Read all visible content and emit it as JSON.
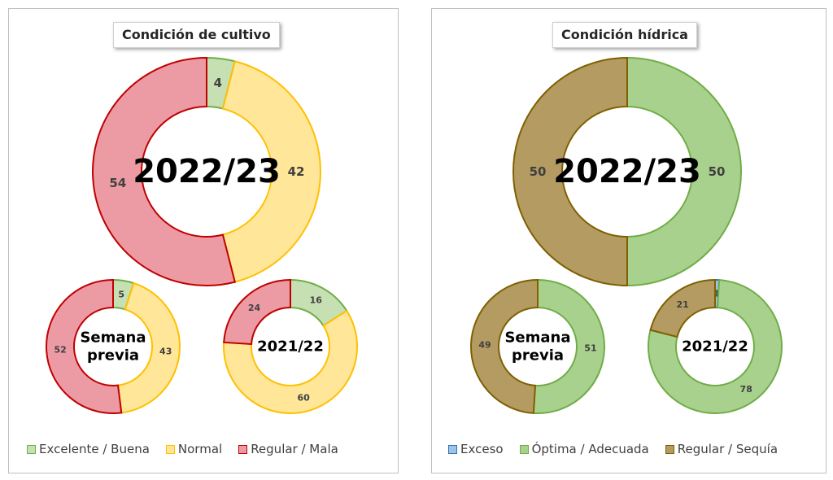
{
  "chart_data": [
    {
      "type": "pie",
      "title": "Condición de cultivo",
      "categories": [
        "Excelente / Buena",
        "Normal",
        "Regular / Mala"
      ],
      "colors": {
        "fill": [
          "#c6e0b4",
          "#ffe699",
          "#ec9ba4"
        ],
        "stroke": [
          "#70ad47",
          "#ffc000",
          "#c00000"
        ]
      },
      "legend": "bottom",
      "donuts": [
        {
          "label": "2022/23",
          "values": [
            4,
            42,
            54
          ],
          "value_labels": [
            "4",
            "42",
            "54"
          ]
        },
        {
          "label": "Semana previa",
          "values": [
            5,
            43,
            52
          ],
          "value_labels": [
            "5",
            "43",
            "52"
          ]
        },
        {
          "label": "2021/22",
          "values": [
            16,
            60,
            24
          ],
          "value_labels": [
            "16",
            "60",
            "24"
          ]
        }
      ]
    },
    {
      "type": "pie",
      "title": "Condición hídrica",
      "categories": [
        "Exceso",
        "Óptima / Adecuada",
        "Regular / Sequía"
      ],
      "colors": {
        "fill": [
          "#9dc3e6",
          "#a9d18e",
          "#b49b62"
        ],
        "stroke": [
          "#2e75b6",
          "#70ad47",
          "#7f6000"
        ]
      },
      "legend": "bottom",
      "donuts": [
        {
          "label": "2022/23",
          "values": [
            0,
            50,
            50
          ],
          "value_labels": [
            "-",
            "50",
            "50"
          ]
        },
        {
          "label": "Semana previa",
          "values": [
            0,
            51,
            49
          ],
          "value_labels": [
            "-",
            "51",
            "49"
          ]
        },
        {
          "label": "2021/22",
          "values": [
            1,
            78,
            21
          ],
          "value_labels": [
            "1",
            "78",
            "21"
          ]
        }
      ]
    }
  ]
}
